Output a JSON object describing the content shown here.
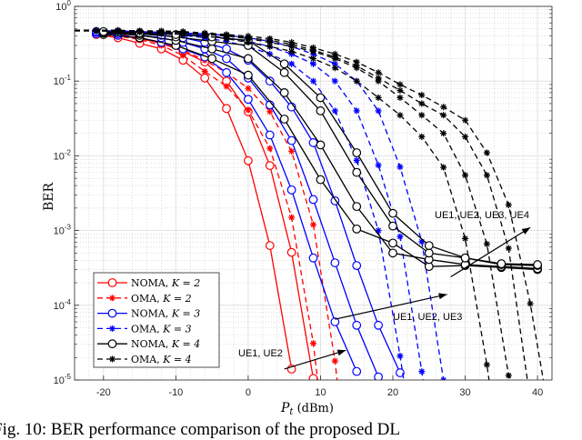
{
  "chart_data": {
    "type": "line",
    "xlabel": "P_t (dBm)",
    "xlabel_main": "P",
    "xlabel_sub": "t",
    "xlabel_unit": " (dBm)",
    "ylabel": "BER",
    "xlim": [
      -24,
      42
    ],
    "ylim": [
      1e-05,
      1
    ],
    "yscale": "log",
    "grid": true,
    "xticks": [
      -20,
      -10,
      0,
      10,
      20,
      30,
      40
    ],
    "xtick_labels": [
      "-20",
      "-10",
      "0",
      "10",
      "20",
      "30",
      "40"
    ],
    "ytick_exponents": [
      "0",
      "-1",
      "-2",
      "-3",
      "-4",
      "-5"
    ],
    "ytick_base": "10",
    "legend_position": "bottom-left",
    "legend": [
      {
        "label": "NOMA, ",
        "k": "K = 2",
        "color": "#ff0000",
        "dash": false,
        "marker": "circle"
      },
      {
        "label": "OMA, ",
        "k": "K = 2",
        "color": "#ff0000",
        "dash": true,
        "marker": "star"
      },
      {
        "label": "NOMA, ",
        "k": "K = 3",
        "color": "#0000ff",
        "dash": false,
        "marker": "circle"
      },
      {
        "label": "OMA, ",
        "k": "K = 3",
        "color": "#0000ff",
        "dash": true,
        "marker": "star"
      },
      {
        "label": "NOMA, ",
        "k": "K = 4",
        "color": "#000000",
        "dash": false,
        "marker": "circle"
      },
      {
        "label": "OMA, ",
        "k": "K = 4",
        "color": "#000000",
        "dash": true,
        "marker": "star"
      }
    ],
    "series": [
      {
        "name": "NOMA K=2 UE1",
        "color": "#ff0000",
        "dash": false,
        "marker": "circle",
        "x": [
          -21,
          -18,
          -15,
          -12,
          -9,
          -6,
          -3,
          0,
          3,
          6
        ],
        "y": [
          0.42,
          0.38,
          0.32,
          0.27,
          0.19,
          0.11,
          0.043,
          0.0086,
          0.00063,
          1.4e-05
        ]
      },
      {
        "name": "NOMA K=2 UE2",
        "color": "#ff0000",
        "dash": false,
        "marker": "circle",
        "x": [
          -21,
          -18,
          -15,
          -12,
          -9,
          -6,
          -3,
          0,
          3,
          6,
          9
        ],
        "y": [
          0.43,
          0.41,
          0.37,
          0.32,
          0.25,
          0.18,
          0.1,
          0.039,
          0.0074,
          0.00051,
          1.05e-05
        ]
      },
      {
        "name": "OMA K=2 UE1",
        "color": "#ff0000",
        "dash": true,
        "marker": "star",
        "x": [
          -21,
          -18,
          -15,
          -12,
          -9,
          -6,
          -3,
          0,
          3,
          6,
          9
        ],
        "y": [
          0.43,
          0.4,
          0.36,
          0.3,
          0.22,
          0.135,
          0.085,
          0.041,
          0.0126,
          0.0015,
          3.1e-05
        ],
        "end": [
          9.6,
          1e-05
        ]
      },
      {
        "name": "OMA K=2 UE2",
        "color": "#ff0000",
        "dash": true,
        "marker": "star",
        "x": [
          -21,
          -18,
          -15,
          -12,
          -9,
          -6,
          -3,
          0,
          3,
          6,
          9,
          12
        ],
        "y": [
          0.44,
          0.42,
          0.38,
          0.33,
          0.26,
          0.19,
          0.13,
          0.08,
          0.039,
          0.0115,
          0.0012,
          1.8e-05
        ],
        "end": [
          12.3,
          1e-05
        ]
      },
      {
        "name": "NOMA K=3 UE1",
        "color": "#0000ff",
        "dash": false,
        "marker": "circle",
        "x": [
          -21,
          -18,
          -15,
          -12,
          -9,
          -6,
          -3,
          0,
          3,
          6,
          9,
          12,
          15
        ],
        "y": [
          0.43,
          0.41,
          0.38,
          0.33,
          0.27,
          0.21,
          0.13,
          0.057,
          0.019,
          0.0035,
          0.00043,
          6e-05,
          1.3e-05
        ]
      },
      {
        "name": "NOMA K=3 UE2",
        "color": "#0000ff",
        "dash": false,
        "marker": "circle",
        "x": [
          -21,
          -18,
          -15,
          -12,
          -9,
          -6,
          -3,
          0,
          3,
          6,
          9,
          12,
          15,
          18
        ],
        "y": [
          0.45,
          0.43,
          0.41,
          0.38,
          0.33,
          0.27,
          0.2,
          0.11,
          0.048,
          0.016,
          0.0026,
          0.00037,
          5.4e-05,
          1.1e-05
        ]
      },
      {
        "name": "NOMA K=3 UE3",
        "color": "#0000ff",
        "dash": false,
        "marker": "circle",
        "x": [
          -21,
          -18,
          -15,
          -12,
          -9,
          -6,
          -3,
          0,
          3,
          6,
          9,
          12,
          15,
          18,
          21
        ],
        "y": [
          0.46,
          0.45,
          0.43,
          0.41,
          0.38,
          0.33,
          0.27,
          0.19,
          0.1,
          0.045,
          0.015,
          0.0025,
          0.00034,
          5.4e-05,
          1.25e-05
        ]
      },
      {
        "name": "OMA K=3 UE1",
        "color": "#0000ff",
        "dash": true,
        "marker": "star",
        "x": [
          -21,
          -18,
          -15,
          -12,
          -9,
          -6,
          -3,
          0,
          3,
          6,
          9,
          12,
          15,
          18,
          21
        ],
        "y": [
          0.46,
          0.45,
          0.44,
          0.43,
          0.41,
          0.38,
          0.34,
          0.29,
          0.23,
          0.17,
          0.1,
          0.04,
          0.0087,
          0.001,
          2.1e-05
        ],
        "end": [
          21.5,
          1e-05
        ]
      },
      {
        "name": "OMA K=3 UE2",
        "color": "#0000ff",
        "dash": true,
        "marker": "star",
        "x": [
          -21,
          -18,
          -15,
          -12,
          -9,
          -6,
          -3,
          0,
          3,
          6,
          9,
          12,
          15,
          18,
          21,
          24
        ],
        "y": [
          0.47,
          0.46,
          0.45,
          0.44,
          0.43,
          0.41,
          0.38,
          0.34,
          0.29,
          0.23,
          0.17,
          0.1,
          0.04,
          0.0075,
          0.00083,
          1.3e-05
        ],
        "end": [
          24.2,
          1e-05
        ]
      },
      {
        "name": "OMA K=3 UE3",
        "color": "#0000ff",
        "dash": true,
        "marker": "star",
        "x": [
          -21,
          -18,
          -15,
          -12,
          -9,
          -6,
          -3,
          0,
          3,
          6,
          9,
          12,
          15,
          18,
          21,
          24,
          27
        ],
        "y": [
          0.47,
          0.47,
          0.46,
          0.45,
          0.44,
          0.43,
          0.41,
          0.38,
          0.34,
          0.29,
          0.23,
          0.17,
          0.1,
          0.04,
          0.0071,
          0.00071,
          1e-05
        ]
      },
      {
        "name": "NOMA K=4 UE1",
        "color": "#000000",
        "dash": false,
        "marker": "circle",
        "x": [
          -20,
          -15,
          -10,
          -5,
          0,
          5,
          10,
          15,
          20,
          25,
          30,
          35,
          40
        ],
        "y": [
          0.42,
          0.38,
          0.3,
          0.2,
          0.12,
          0.031,
          0.0048,
          0.00105,
          0.00068,
          0.00033,
          0.00034,
          0.00032,
          0.0003
        ]
      },
      {
        "name": "NOMA K=4 UE2",
        "color": "#000000",
        "dash": false,
        "marker": "circle",
        "x": [
          -20,
          -15,
          -10,
          -5,
          0,
          5,
          10,
          15,
          20,
          25,
          30,
          35,
          40
        ],
        "y": [
          0.44,
          0.41,
          0.35,
          0.27,
          0.2,
          0.07,
          0.014,
          0.0021,
          0.0005,
          0.00041,
          0.00035,
          0.00033,
          0.00031
        ]
      },
      {
        "name": "NOMA K=4 UE3",
        "color": "#000000",
        "dash": false,
        "marker": "circle",
        "x": [
          -20,
          -15,
          -10,
          -5,
          0,
          5,
          10,
          15,
          20,
          25,
          30,
          35,
          40
        ],
        "y": [
          0.45,
          0.43,
          0.39,
          0.34,
          0.3,
          0.13,
          0.04,
          0.006,
          0.00115,
          0.0005,
          0.00043,
          0.00035,
          0.00034
        ]
      },
      {
        "name": "NOMA K=4 UE4",
        "color": "#000000",
        "dash": false,
        "marker": "circle",
        "x": [
          -20,
          -15,
          -10,
          -5,
          0,
          5,
          10,
          15,
          20,
          25,
          30,
          35,
          40
        ],
        "y": [
          0.46,
          0.44,
          0.42,
          0.39,
          0.35,
          0.17,
          0.06,
          0.011,
          0.0017,
          0.00063,
          0.00043,
          0.00036,
          0.00035
        ]
      },
      {
        "name": "OMA K=4 UE1",
        "color": "#000000",
        "dash": true,
        "marker": "star",
        "x": [
          -21,
          -18,
          -15,
          -12,
          -9,
          -6,
          -3,
          0,
          3,
          6,
          9,
          12,
          15,
          18,
          21,
          24,
          27,
          30,
          33
        ],
        "y": [
          0.47,
          0.46,
          0.45,
          0.44,
          0.42,
          0.4,
          0.37,
          0.33,
          0.29,
          0.25,
          0.2,
          0.15,
          0.1,
          0.06,
          0.035,
          0.018,
          0.007,
          0.00078,
          1.6e-05
        ],
        "end": [
          33.3,
          1e-05
        ]
      },
      {
        "name": "OMA K=4 UE2",
        "color": "#000000",
        "dash": true,
        "marker": "star",
        "x": [
          -21,
          -18,
          -15,
          -12,
          -9,
          -6,
          -3,
          0,
          3,
          6,
          9,
          12,
          15,
          18,
          21,
          24,
          27,
          30,
          33,
          36
        ],
        "y": [
          0.47,
          0.47,
          0.46,
          0.45,
          0.44,
          0.42,
          0.4,
          0.37,
          0.33,
          0.29,
          0.25,
          0.2,
          0.15,
          0.1,
          0.06,
          0.035,
          0.02,
          0.0055,
          0.00066,
          1.15e-05
        ],
        "end": [
          36.2,
          1e-05
        ]
      },
      {
        "name": "OMA K=4 UE3",
        "color": "#000000",
        "dash": true,
        "marker": "star",
        "x": [
          -21,
          -18,
          -15,
          -12,
          -9,
          -6,
          -3,
          0,
          3,
          6,
          9,
          12,
          15,
          18,
          21,
          24,
          27,
          30,
          33,
          36
        ],
        "y": [
          0.48,
          0.47,
          0.47,
          0.46,
          0.45,
          0.43,
          0.41,
          0.38,
          0.35,
          0.31,
          0.26,
          0.21,
          0.16,
          0.11,
          0.075,
          0.05,
          0.035,
          0.018,
          0.0055,
          0.00058
        ],
        "end": [
          38.6,
          1e-05
        ]
      },
      {
        "name": "OMA K=4 UE4",
        "color": "#000000",
        "dash": true,
        "marker": "star",
        "x": [
          -21,
          -18,
          -15,
          -12,
          -9,
          -6,
          -3,
          0,
          3,
          6,
          9,
          12,
          15,
          18,
          21,
          24,
          27,
          30,
          33,
          36,
          39
        ],
        "y": [
          0.48,
          0.48,
          0.47,
          0.47,
          0.46,
          0.44,
          0.42,
          0.4,
          0.37,
          0.33,
          0.28,
          0.23,
          0.18,
          0.13,
          0.09,
          0.065,
          0.045,
          0.03,
          0.011,
          0.0022,
          0.000105
        ],
        "end": [
          40.8,
          1e-05
        ]
      }
    ],
    "annotations": [
      {
        "text": "UE1, UE2",
        "arrow_from": [
          5,
          1.4e-05
        ],
        "arrow_to": [
          13.5,
          2.5e-05
        ]
      },
      {
        "text": "UE1, UE2, UE3",
        "arrow_from": [
          12,
          6.5e-05
        ],
        "arrow_to": [
          27.5,
          0.00014
        ]
      },
      {
        "text": "UE1, UE2, UE3, UE4",
        "arrow_from": [
          28,
          0.00024
        ],
        "arrow_to": [
          39,
          0.0011
        ]
      }
    ]
  },
  "caption": "Fig. 10: BER performance comparison of the proposed DL"
}
